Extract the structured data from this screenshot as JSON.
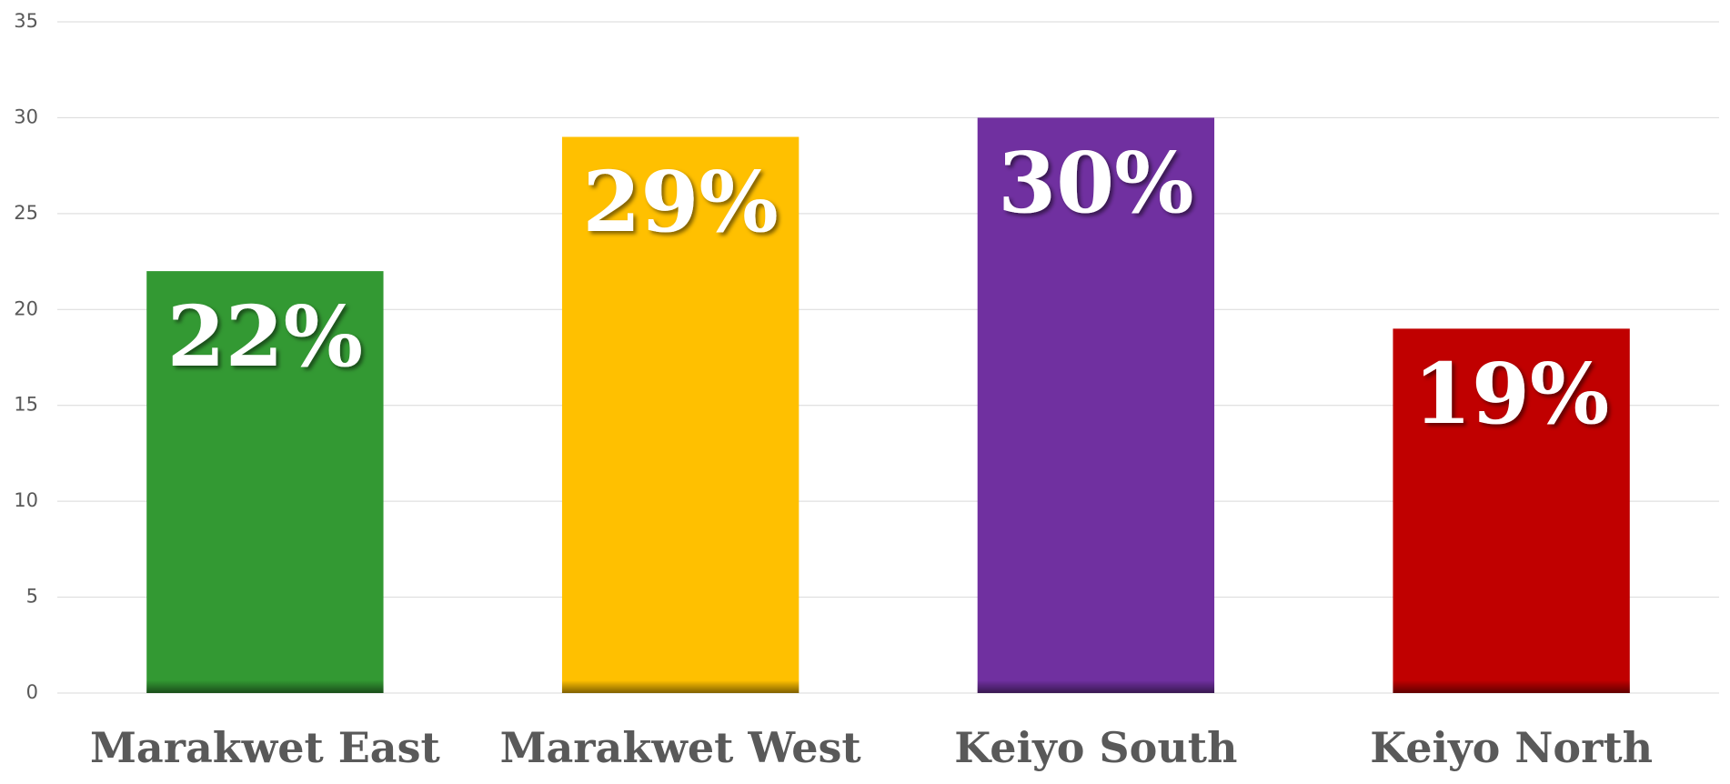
{
  "chart_data": {
    "type": "bar",
    "categories": [
      "Marakwet East",
      "Marakwet West",
      "Keiyo South",
      "Keiyo North"
    ],
    "values": [
      22,
      29,
      30,
      19
    ],
    "value_labels": [
      "22%",
      "29%",
      "30%",
      "19%"
    ],
    "colors": [
      "#339933",
      "#ffc000",
      "#7030a0",
      "#c00000"
    ],
    "ylim": [
      0,
      35
    ],
    "yticks": [
      0,
      5,
      10,
      15,
      20,
      25,
      30,
      35
    ],
    "grid": true
  }
}
